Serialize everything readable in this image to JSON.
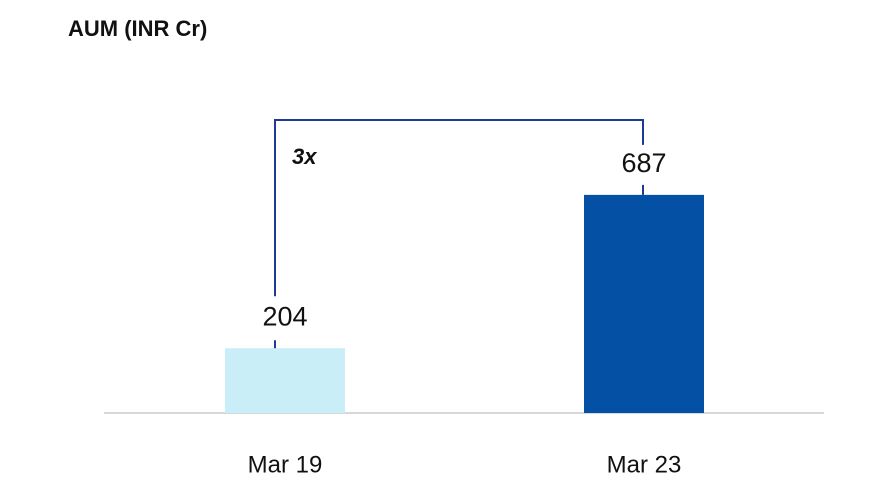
{
  "chart_data": {
    "type": "bar",
    "title": "AUM (INR Cr)",
    "categories": [
      "Mar 19",
      "Mar 23"
    ],
    "values": [
      204,
      687
    ],
    "colors": [
      "#c9eef7",
      "#0450a5"
    ],
    "annotation": "3x"
  }
}
